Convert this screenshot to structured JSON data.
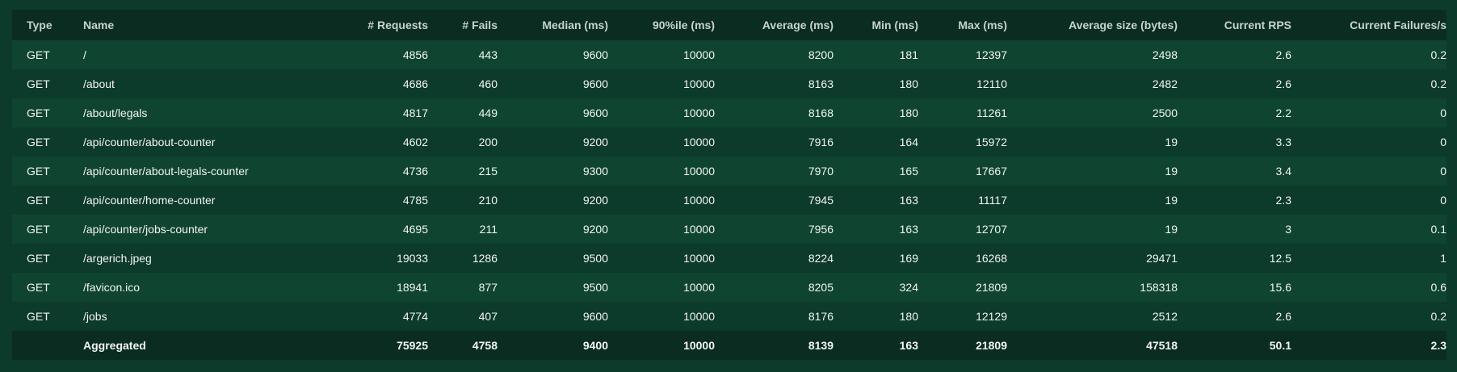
{
  "columns": [
    "Type",
    "Name",
    "# Requests",
    "# Fails",
    "Median (ms)",
    "90%ile (ms)",
    "Average (ms)",
    "Min (ms)",
    "Max (ms)",
    "Average size (bytes)",
    "Current RPS",
    "Current Failures/s"
  ],
  "rows": [
    [
      "GET",
      "/",
      "4856",
      "443",
      "9600",
      "10000",
      "8200",
      "181",
      "12397",
      "2498",
      "2.6",
      "0.2"
    ],
    [
      "GET",
      "/about",
      "4686",
      "460",
      "9600",
      "10000",
      "8163",
      "180",
      "12110",
      "2482",
      "2.6",
      "0.2"
    ],
    [
      "GET",
      "/about/legals",
      "4817",
      "449",
      "9600",
      "10000",
      "8168",
      "180",
      "11261",
      "2500",
      "2.2",
      "0"
    ],
    [
      "GET",
      "/api/counter/about-counter",
      "4602",
      "200",
      "9200",
      "10000",
      "7916",
      "164",
      "15972",
      "19",
      "3.3",
      "0"
    ],
    [
      "GET",
      "/api/counter/about-legals-counter",
      "4736",
      "215",
      "9300",
      "10000",
      "7970",
      "165",
      "17667",
      "19",
      "3.4",
      "0"
    ],
    [
      "GET",
      "/api/counter/home-counter",
      "4785",
      "210",
      "9200",
      "10000",
      "7945",
      "163",
      "11117",
      "19",
      "2.3",
      "0"
    ],
    [
      "GET",
      "/api/counter/jobs-counter",
      "4695",
      "211",
      "9200",
      "10000",
      "7956",
      "163",
      "12707",
      "19",
      "3",
      "0.1"
    ],
    [
      "GET",
      "/argerich.jpeg",
      "19033",
      "1286",
      "9500",
      "10000",
      "8224",
      "169",
      "16268",
      "29471",
      "12.5",
      "1"
    ],
    [
      "GET",
      "/favicon.ico",
      "18941",
      "877",
      "9500",
      "10000",
      "8205",
      "324",
      "21809",
      "158318",
      "15.6",
      "0.6"
    ],
    [
      "GET",
      "/jobs",
      "4774",
      "407",
      "9600",
      "10000",
      "8176",
      "180",
      "12129",
      "2512",
      "2.6",
      "0.2"
    ]
  ],
  "aggregated": [
    "",
    "Aggregated",
    "75925",
    "4758",
    "9400",
    "10000",
    "8139",
    "163",
    "21809",
    "47518",
    "50.1",
    "2.3"
  ],
  "colors": {
    "background": "#0c3a2b",
    "header_row": "#0a2c21",
    "stripe_row": "#0f4431",
    "text": "#f2f5f3",
    "header_text": "#c7d3cc"
  }
}
